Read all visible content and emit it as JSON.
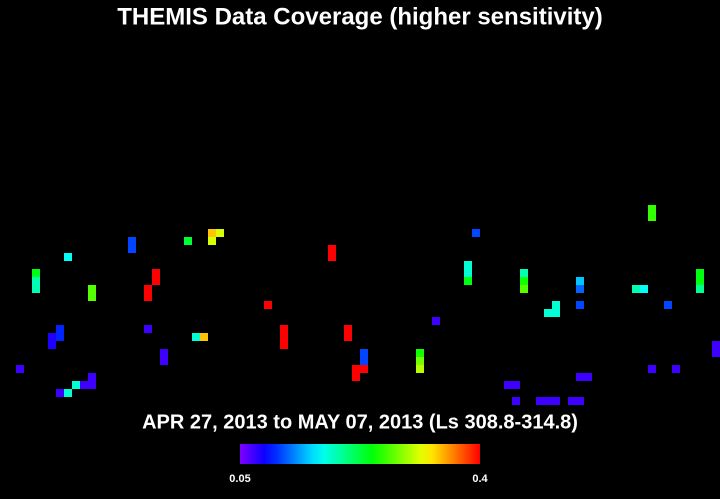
{
  "title": "THEMIS Data Coverage (higher sensitivity)",
  "subtitle": "APR 27, 2013 to MAY 07, 2013 (Ls 308.8-314.8)",
  "colorbar": {
    "range": [
      0.05,
      0.4
    ],
    "ticks": [
      0.05,
      0.4
    ]
  },
  "cells": [
    [
      4,
      33,
      0.24
    ],
    [
      4,
      34,
      0.19
    ],
    [
      4,
      35,
      0.19
    ],
    [
      8,
      31,
      0.17
    ],
    [
      11,
      35,
      0.27
    ],
    [
      11,
      36,
      0.27
    ],
    [
      16,
      29,
      0.11
    ],
    [
      16,
      30,
      0.11
    ],
    [
      23,
      29,
      0.23
    ],
    [
      26,
      28,
      0.34
    ],
    [
      27,
      28,
      0.31
    ],
    [
      26,
      29,
      0.31
    ],
    [
      19,
      33,
      0.4
    ],
    [
      19,
      34,
      0.4
    ],
    [
      18,
      35,
      0.4
    ],
    [
      18,
      36,
      0.4
    ],
    [
      41,
      30,
      0.4
    ],
    [
      41,
      31,
      0.4
    ],
    [
      33,
      37,
      0.4
    ],
    [
      35,
      40,
      0.4
    ],
    [
      35,
      41,
      0.4
    ],
    [
      35,
      42,
      0.4
    ],
    [
      43,
      40,
      0.4
    ],
    [
      43,
      41,
      0.4
    ],
    [
      18,
      40,
      0.07
    ],
    [
      7,
      40,
      0.1
    ],
    [
      7,
      41,
      0.1
    ],
    [
      6,
      41,
      0.08
    ],
    [
      6,
      42,
      0.08
    ],
    [
      24,
      41,
      0.18
    ],
    [
      25,
      41,
      0.34
    ],
    [
      20,
      43,
      0.07
    ],
    [
      20,
      44,
      0.07
    ],
    [
      2,
      45,
      0.07
    ],
    [
      11,
      46,
      0.07
    ],
    [
      11,
      47,
      0.07
    ],
    [
      10,
      47,
      0.07
    ],
    [
      9,
      47,
      0.18
    ],
    [
      8,
      48,
      0.18
    ],
    [
      7,
      48,
      0.07
    ],
    [
      45,
      43,
      0.11
    ],
    [
      45,
      44,
      0.11
    ],
    [
      44,
      45,
      0.4
    ],
    [
      44,
      46,
      0.4
    ],
    [
      45,
      45,
      0.4
    ],
    [
      52,
      43,
      0.25
    ],
    [
      52,
      44,
      0.28
    ],
    [
      52,
      45,
      0.3
    ],
    [
      54,
      39,
      0.07
    ],
    [
      59,
      28,
      0.11
    ],
    [
      58,
      32,
      0.18
    ],
    [
      58,
      33,
      0.18
    ],
    [
      58,
      34,
      0.24
    ],
    [
      65,
      33,
      0.19
    ],
    [
      65,
      34,
      0.25
    ],
    [
      65,
      35,
      0.27
    ],
    [
      72,
      34,
      0.15
    ],
    [
      72,
      35,
      0.12
    ],
    [
      69,
      37,
      0.18
    ],
    [
      68,
      38,
      0.18
    ],
    [
      69,
      38,
      0.18
    ],
    [
      72,
      37,
      0.11
    ],
    [
      63,
      47,
      0.07
    ],
    [
      64,
      47,
      0.07
    ],
    [
      64,
      49,
      0.07
    ],
    [
      67,
      49,
      0.07
    ],
    [
      68,
      49,
      0.07
    ],
    [
      69,
      49,
      0.07
    ],
    [
      71,
      49,
      0.07
    ],
    [
      72,
      49,
      0.07
    ],
    [
      72,
      46,
      0.07
    ],
    [
      73,
      46,
      0.07
    ],
    [
      81,
      25,
      0.26
    ],
    [
      81,
      26,
      0.26
    ],
    [
      79,
      35,
      0.19
    ],
    [
      80,
      35,
      0.17
    ],
    [
      83,
      37,
      0.11
    ],
    [
      87,
      33,
      0.24
    ],
    [
      87,
      34,
      0.24
    ],
    [
      87,
      35,
      0.2
    ],
    [
      89,
      42,
      0.07
    ],
    [
      89,
      43,
      0.07
    ],
    [
      81,
      45,
      0.07
    ],
    [
      84,
      45,
      0.07
    ]
  ]
}
